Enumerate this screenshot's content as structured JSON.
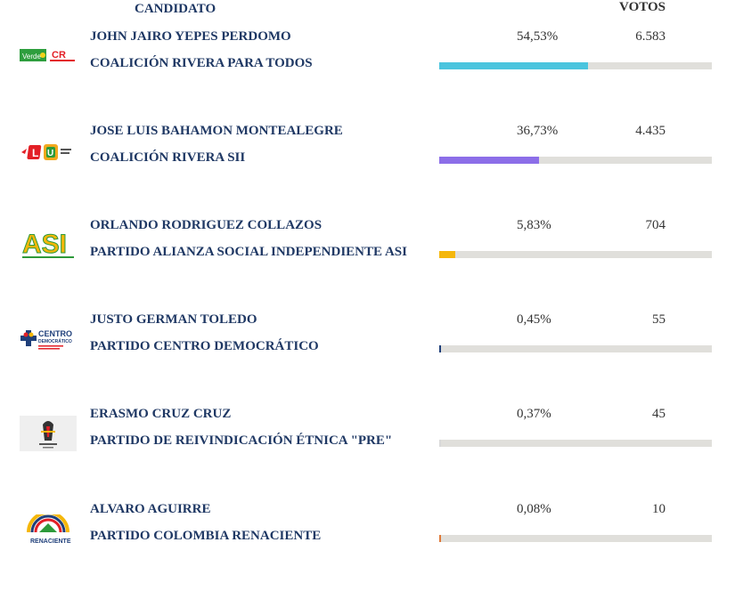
{
  "header": {
    "candidate_label": "CANDIDATO",
    "votes_label": "VOTOS"
  },
  "candidates": [
    {
      "name": "JOHN JAIRO YEPES PERDOMO",
      "party": "COALICIÓN RIVERA PARA TODOS",
      "percent": "54,53%",
      "votes": "6.583",
      "share": 0.5453,
      "color": "#4ac4de",
      "logo": "verde-cr-logo"
    },
    {
      "name": "JOSE LUIS BAHAMON MONTEALEGRE",
      "party": "COALICIÓN RIVERA SII",
      "percent": "36,73%",
      "votes": "4.435",
      "share": 0.3673,
      "color": "#8c6ee8",
      "logo": "liberal-u-logo"
    },
    {
      "name": "ORLANDO RODRIGUEZ COLLAZOS",
      "party": "PARTIDO ALIANZA SOCIAL INDEPENDIENTE ASI",
      "percent": "5,83%",
      "votes": "704",
      "share": 0.0583,
      "color": "#f5b70a",
      "logo": "asi-logo"
    },
    {
      "name": "JUSTO GERMAN TOLEDO",
      "party": "PARTIDO CENTRO DEMOCRÁTICO",
      "percent": "0,45%",
      "votes": "55",
      "share": 0.0045,
      "color": "#1f3f7a",
      "logo": "centro-democratico-logo"
    },
    {
      "name": "ERASMO CRUZ CRUZ",
      "party": "PARTIDO DE REIVINDICACIÓN ÉTNICA \"PRE\"",
      "percent": "0,37%",
      "votes": "45",
      "share": 0.0037,
      "color": "#d9d9d9",
      "logo": "pre-logo"
    },
    {
      "name": "ALVARO AGUIRRE",
      "party": "PARTIDO COLOMBIA RENACIENTE",
      "percent": "0,08%",
      "votes": "10",
      "share": 0.0008,
      "color": "#e07a3a",
      "logo": "colombia-renaciente-logo"
    }
  ],
  "logo_text": {
    "verde": "Verde",
    "cr": "CR",
    "asi": "ASI",
    "centro": "CENTRO",
    "democratico": "DEMOCRÁTICO",
    "renaciente": "RENACIENTE"
  }
}
